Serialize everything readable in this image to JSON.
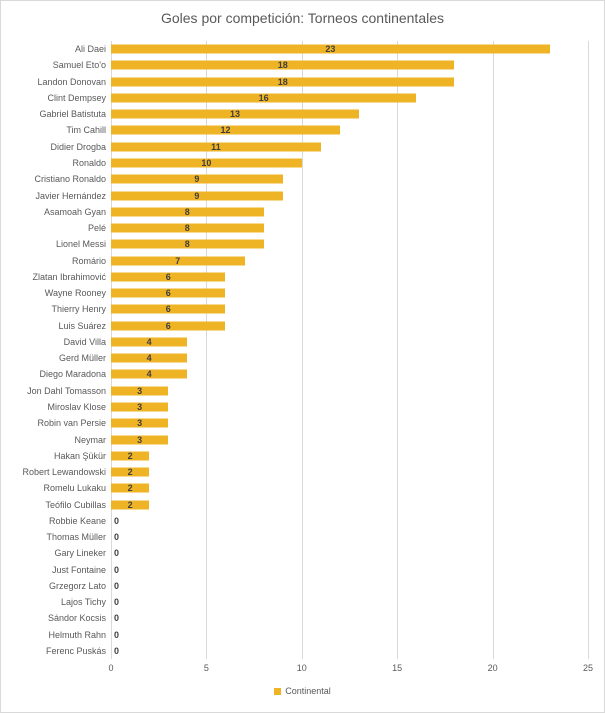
{
  "title": "Goles por competición: Torneos continentales",
  "colors": {
    "bar": "#efb425",
    "title_text": "#595959",
    "axis_text": "#595959",
    "value_text": "#3f3f3f",
    "gridline": "#d9d9d9",
    "border": "#d9d9d9"
  },
  "legend": {
    "label": "Continental",
    "marker_color": "#efb425",
    "position": "bottom"
  },
  "x_axis": {
    "ticks": [
      0,
      5,
      10,
      15,
      20,
      25
    ],
    "max": 25
  },
  "chart_data": {
    "type": "bar",
    "orientation": "horizontal",
    "title": "Goles por competición: Torneos continentales",
    "categories": [
      "Ali Daei",
      "Samuel Eto'o",
      "Landon Donovan",
      "Clint Dempsey",
      "Gabriel Batistuta",
      "Tim Cahill",
      "Didier Drogba",
      "Ronaldo",
      "Cristiano Ronaldo",
      "Javier Hernández",
      "Asamoah Gyan",
      "Pelé",
      "Lionel Messi",
      "Romário",
      "Zlatan Ibrahimović",
      "Wayne Rooney",
      "Thierry Henry",
      "Luis Suárez",
      "David Villa",
      "Gerd Müller",
      "Diego Maradona",
      "Jon Dahl Tomasson",
      "Miroslav Klose",
      "Robin van Persie",
      "Neymar",
      "Hakan Şükür",
      "Robert Lewandowski",
      "Romelu Lukaku",
      "Teófilo Cubillas",
      "Robbie Keane",
      "Thomas Müller",
      "Gary Lineker",
      "Just Fontaine",
      "Grzegorz Lato",
      "Lajos Tichy",
      "Sándor Kocsis",
      "Helmuth Rahn",
      "Ferenc Puskás"
    ],
    "values": [
      23,
      18,
      18,
      16,
      13,
      12,
      11,
      10,
      9,
      9,
      8,
      8,
      8,
      7,
      6,
      6,
      6,
      6,
      4,
      4,
      4,
      3,
      3,
      3,
      3,
      2,
      2,
      2,
      2,
      0,
      0,
      0,
      0,
      0,
      0,
      0,
      0,
      0
    ],
    "xlabel": "",
    "ylabel": "",
    "xlim": [
      0,
      25
    ],
    "grid": true,
    "data_labels": "center",
    "legend_entries": [
      "Continental"
    ],
    "legend_position": "bottom"
  }
}
